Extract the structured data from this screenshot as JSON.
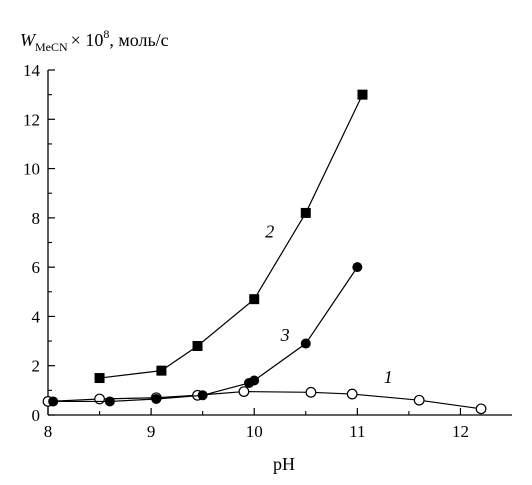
{
  "chart_data": {
    "type": "line",
    "title": "",
    "xlabel": "pH",
    "ylabel": {
      "var": "W",
      "sub": "MeCN",
      "times": "× 10",
      "exp": "8",
      "unit": ", моль/с"
    },
    "xlim": [
      8,
      12.5
    ],
    "ylim": [
      0,
      14
    ],
    "xticks": [
      "8",
      "9",
      "10",
      "11",
      "12"
    ],
    "yticks": [
      "0",
      "2",
      "4",
      "6",
      "8",
      "10",
      "12",
      "14"
    ],
    "series": [
      {
        "name": "1",
        "marker": "open-circle",
        "x": [
          8.0,
          8.5,
          9.05,
          9.45,
          9.9,
          10.55,
          10.95,
          11.6,
          12.2
        ],
        "y": [
          0.55,
          0.65,
          0.7,
          0.8,
          0.95,
          0.92,
          0.85,
          0.6,
          0.25
        ]
      },
      {
        "name": "2",
        "marker": "filled-square",
        "x": [
          8.5,
          9.1,
          9.45,
          10.0,
          10.5,
          11.05
        ],
        "y": [
          1.5,
          1.8,
          2.8,
          4.7,
          8.2,
          13.0
        ]
      },
      {
        "name": "3",
        "marker": "filled-circle",
        "x": [
          8.05,
          8.6,
          9.05,
          9.5,
          9.95,
          10.0,
          10.5,
          11.0
        ],
        "y": [
          0.55,
          0.55,
          0.65,
          0.8,
          1.3,
          1.4,
          2.9,
          6.0
        ]
      }
    ],
    "curve_labels": [
      {
        "series": "2",
        "text": "2",
        "x": 10.15,
        "y": 7.2
      },
      {
        "series": "3",
        "text": "3",
        "x": 10.3,
        "y": 3.0
      },
      {
        "series": "1",
        "text": "1",
        "x": 11.3,
        "y": 1.3
      }
    ],
    "colors": {
      "line": "#000000",
      "marker": "#000000",
      "background": "#ffffff"
    },
    "grid": false,
    "legend": "none"
  }
}
